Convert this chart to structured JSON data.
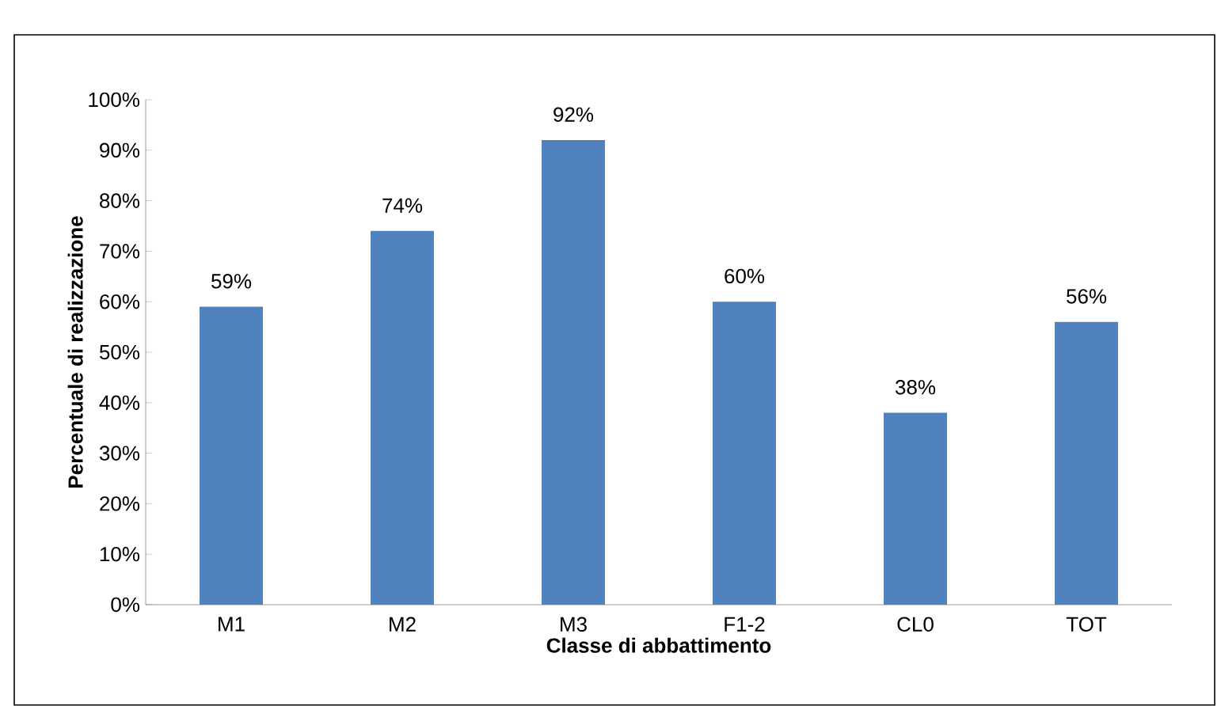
{
  "chart_data": {
    "type": "bar",
    "xlabel": "Classe di abbattimento",
    "ylabel": "Percentuale di realizzazione",
    "categories": [
      "M1",
      "M2",
      "M3",
      "F1-2",
      "CL0",
      "TOT"
    ],
    "values": [
      59,
      74,
      92,
      60,
      38,
      56
    ],
    "value_labels": [
      "59%",
      "74%",
      "92%",
      "60%",
      "38%",
      "56%"
    ],
    "color": "#4f81bd",
    "ylim": [
      0,
      100
    ],
    "yticks": [
      {
        "value": 0,
        "label": "0%"
      },
      {
        "value": 10,
        "label": "10%"
      },
      {
        "value": 20,
        "label": "20%"
      },
      {
        "value": 30,
        "label": "30%"
      },
      {
        "value": 40,
        "label": "40%"
      },
      {
        "value": 50,
        "label": "50%"
      },
      {
        "value": 60,
        "label": "60%"
      },
      {
        "value": 70,
        "label": "70%"
      },
      {
        "value": 80,
        "label": "80%"
      },
      {
        "value": 90,
        "label": "90%"
      },
      {
        "value": 100,
        "label": "100%"
      }
    ],
    "grid": false
  }
}
